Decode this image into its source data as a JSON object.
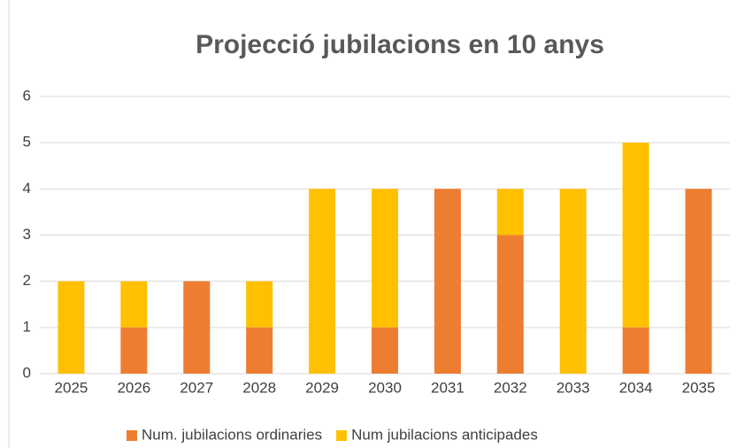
{
  "chart_data": {
    "type": "stacked_bar",
    "title": "Projecció jubilacions en 10 anys",
    "categories": [
      "2025",
      "2026",
      "2027",
      "2028",
      "2029",
      "2030",
      "2031",
      "2032",
      "2033",
      "2034",
      "2035"
    ],
    "series": [
      {
        "name": "Num. jubilacions ordinaries",
        "color": "#ed7d31",
        "values": [
          0,
          1,
          2,
          1,
          0,
          1,
          4,
          3,
          0,
          1,
          4
        ]
      },
      {
        "name": "Num jubilacions anticipades",
        "color": "#ffc000",
        "values": [
          2,
          1,
          0,
          1,
          4,
          3,
          0,
          1,
          4,
          4,
          0
        ]
      }
    ],
    "ylim": [
      0,
      6
    ],
    "yticks": [
      0,
      1,
      2,
      3,
      4,
      5,
      6
    ],
    "grid": true,
    "legend": "bottom"
  }
}
